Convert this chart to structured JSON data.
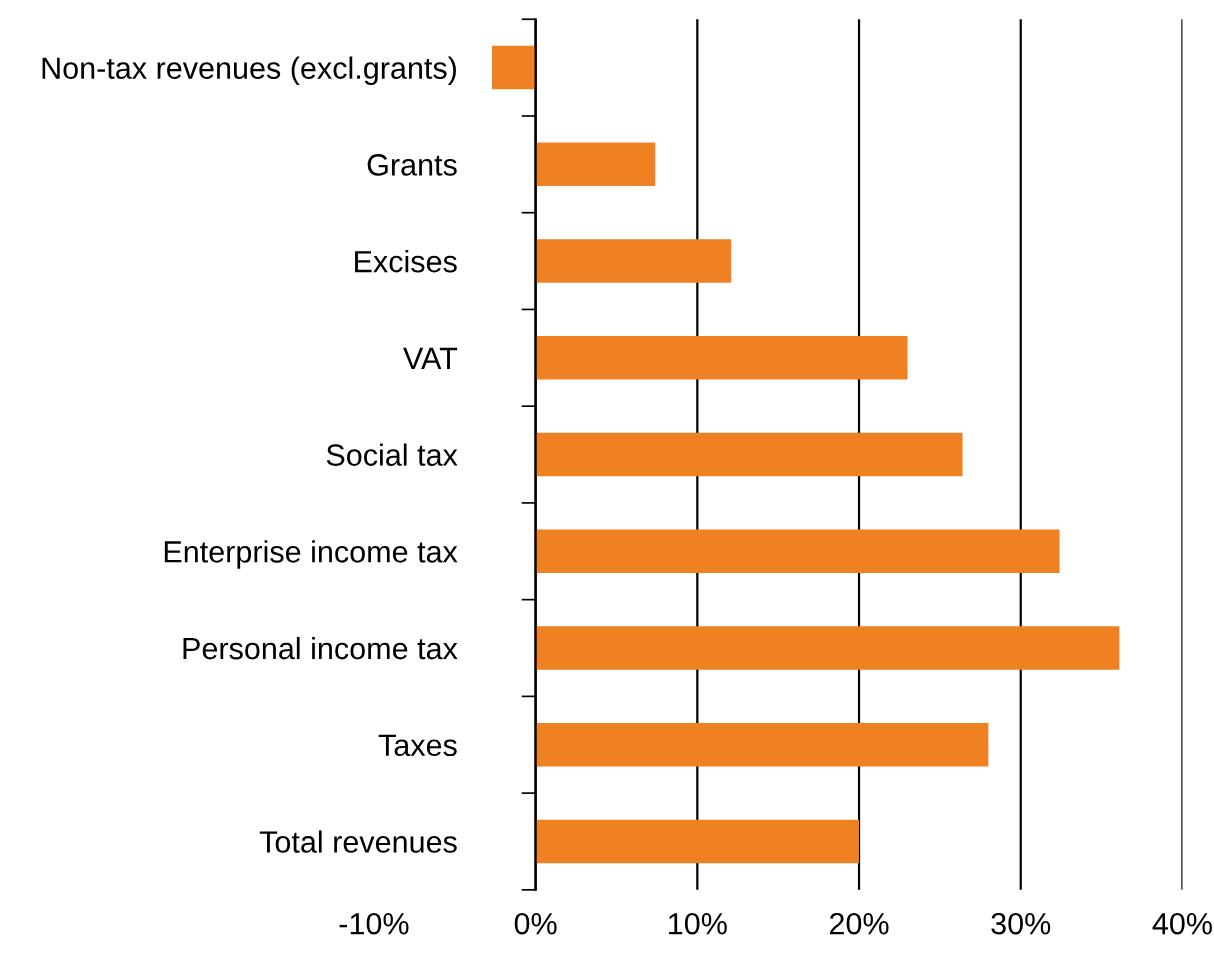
{
  "chart_data": {
    "type": "bar",
    "orientation": "horizontal",
    "categories": [
      "Non-tax revenues (excl.grants)",
      "Grants",
      "Excises",
      "VAT",
      "Social tax",
      "Enterprise income tax",
      "Personal income tax",
      "Taxes",
      "Total revenues"
    ],
    "values": [
      -2.7,
      7.4,
      12.1,
      23.0,
      26.4,
      32.4,
      36.1,
      28.0,
      20.0
    ],
    "color": "#f08122",
    "xlim": [
      -10,
      40
    ],
    "xticks": [
      {
        "value": -10,
        "label": "-10%"
      },
      {
        "value": 0,
        "label": "0%"
      },
      {
        "value": 10,
        "label": "10%"
      },
      {
        "value": 20,
        "label": "20%"
      },
      {
        "value": 30,
        "label": "30%"
      },
      {
        "value": 40,
        "label": "40%"
      }
    ],
    "grid": "x"
  }
}
